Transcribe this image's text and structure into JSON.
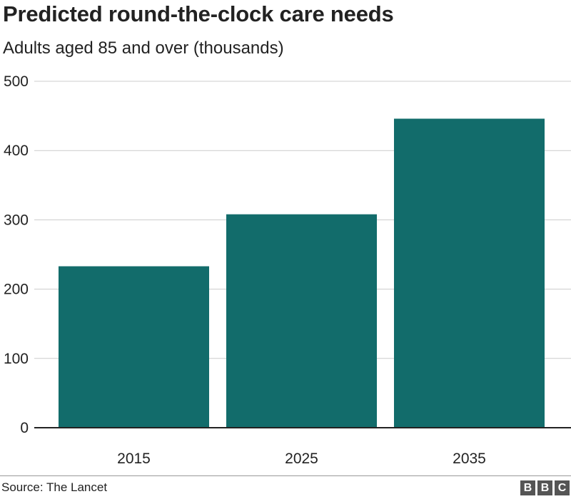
{
  "header": {
    "title": "Predicted round-the-clock care needs",
    "subtitle": "Adults aged 85 and over (thousands)"
  },
  "chart_data": {
    "type": "bar",
    "categories": [
      "2015",
      "2025",
      "2035"
    ],
    "values": [
      233,
      308,
      446
    ],
    "ylim": [
      0,
      500
    ],
    "yticks": [
      0,
      100,
      200,
      300,
      400,
      500
    ],
    "grid": true,
    "bar_color": "#126c6b"
  },
  "footer": {
    "source": "Source: The Lancet",
    "logo_letters": [
      "B",
      "B",
      "C"
    ]
  }
}
